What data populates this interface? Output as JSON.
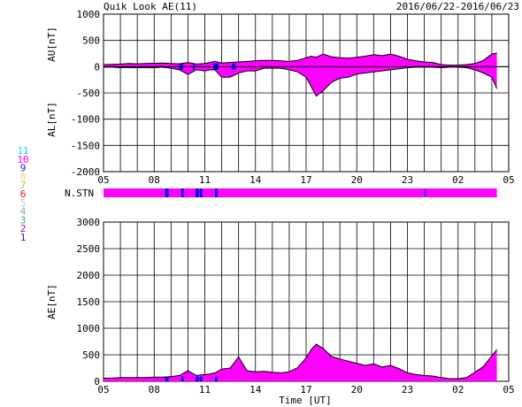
{
  "header": {
    "title": "Quik Look AE(11)",
    "date_range": "2016/06/22-2016/06/23"
  },
  "station_legend": {
    "items": [
      {
        "label": "11",
        "color": "#00e5e5"
      },
      {
        "label": "10",
        "color": "#ff00ff"
      },
      {
        "label": "9",
        "color": "#2020ff"
      },
      {
        "label": "8",
        "color": "#ffd060"
      },
      {
        "label": "7",
        "color": "#9ad84a"
      },
      {
        "label": "6",
        "color": "#e01010"
      },
      {
        "label": "5",
        "color": "#c8c8c8"
      },
      {
        "label": "4",
        "color": "#a0a0a0"
      },
      {
        "label": "3",
        "color": "#30b0b0"
      },
      {
        "label": "2",
        "color": "#a01090"
      },
      {
        "label": "1",
        "color": "#2020c0"
      }
    ]
  },
  "colors": {
    "fill": "#ff00ff",
    "line": "#000000",
    "gap": "#0000ff",
    "grid": "#000000"
  },
  "chart_data": [
    {
      "id": "au_al",
      "type": "area",
      "ylabel_top": "AU[nT]",
      "ylabel_bottom": "AL[nT]",
      "ylim": [
        -2000,
        1000
      ],
      "yticks": [
        -2000,
        -1500,
        -1000,
        -500,
        0,
        500,
        1000
      ],
      "xticks": [
        "05",
        "08",
        "11",
        "14",
        "17",
        "20",
        "23",
        "02",
        "05"
      ],
      "grid": true,
      "x_hours": [
        5,
        5.5,
        6,
        6.5,
        7,
        7.5,
        8,
        8.5,
        9,
        9.5,
        10,
        10.5,
        11,
        11.3,
        11.6,
        12,
        12.5,
        13,
        13.5,
        14,
        14.5,
        15,
        15.5,
        16,
        16.5,
        17,
        17.3,
        17.6,
        18,
        18.5,
        19,
        19.5,
        20,
        20.5,
        21,
        21.5,
        22,
        22.5,
        23,
        23.5,
        24,
        24.5,
        25,
        25.5,
        26,
        26.5,
        27,
        27.5,
        28,
        28.3
      ],
      "au": [
        40,
        45,
        50,
        60,
        55,
        60,
        65,
        70,
        60,
        55,
        80,
        50,
        60,
        80,
        100,
        70,
        80,
        90,
        100,
        110,
        120,
        120,
        110,
        100,
        120,
        170,
        200,
        180,
        240,
        190,
        170,
        160,
        180,
        200,
        230,
        210,
        240,
        200,
        140,
        110,
        90,
        80,
        40,
        30,
        30,
        40,
        60,
        120,
        240,
        260
      ],
      "al": [
        -10,
        -10,
        -20,
        -15,
        -20,
        -15,
        -20,
        -10,
        -30,
        -60,
        -150,
        -60,
        -80,
        -60,
        -60,
        -200,
        -200,
        -120,
        -80,
        -80,
        -30,
        -30,
        -30,
        -60,
        -100,
        -200,
        -380,
        -560,
        -460,
        -300,
        -220,
        -200,
        -140,
        -120,
        -100,
        -80,
        -60,
        -40,
        -20,
        -10,
        -10,
        -10,
        -20,
        -10,
        -10,
        -20,
        -60,
        -120,
        -200,
        -420
      ],
      "gaps": [
        [
          9.5,
          9.7
        ],
        [
          10.3,
          10.4
        ],
        [
          11.5,
          11.8
        ],
        [
          12.6,
          12.8
        ]
      ]
    },
    {
      "id": "nstn",
      "type": "bar",
      "label": "N.STN",
      "segments": [
        {
          "start": 5,
          "end": 28.3,
          "color": "#ff00ff"
        },
        {
          "start": 8.65,
          "end": 8.85,
          "color": "#0000ff"
        },
        {
          "start": 9.6,
          "end": 9.75,
          "color": "#0000ff"
        },
        {
          "start": 10.45,
          "end": 10.65,
          "color": "#0000ff"
        },
        {
          "start": 10.7,
          "end": 10.85,
          "color": "#0000ff"
        },
        {
          "start": 11.6,
          "end": 11.75,
          "color": "#0000ff"
        },
        {
          "start": 24.0,
          "end": 24.05,
          "color": "#4040c0"
        }
      ]
    },
    {
      "id": "ae",
      "type": "area",
      "ylabel": "AE[nT]",
      "xlabel": "Time [UT]",
      "ylim": [
        0,
        3000
      ],
      "yticks": [
        0,
        500,
        1000,
        1500,
        2000,
        2500,
        3000
      ],
      "xticks": [
        "05",
        "08",
        "11",
        "14",
        "17",
        "20",
        "23",
        "02",
        "05"
      ],
      "grid": true,
      "x_hours": [
        5,
        5.5,
        6,
        6.5,
        7,
        7.5,
        8,
        8.5,
        9,
        9.5,
        10,
        10.5,
        11,
        11.3,
        11.6,
        12,
        12.5,
        13,
        13.5,
        14,
        14.5,
        15,
        15.5,
        16,
        16.5,
        17,
        17.3,
        17.6,
        18,
        18.5,
        19,
        19.5,
        20,
        20.5,
        21,
        21.5,
        22,
        22.5,
        23,
        23.5,
        24,
        24.5,
        25,
        25.5,
        26,
        26.5,
        27,
        27.5,
        28,
        28.3
      ],
      "values": [
        60,
        60,
        70,
        70,
        70,
        70,
        80,
        80,
        90,
        110,
        200,
        110,
        130,
        140,
        160,
        230,
        250,
        460,
        200,
        180,
        190,
        170,
        160,
        180,
        260,
        440,
        600,
        700,
        620,
        470,
        420,
        380,
        340,
        300,
        330,
        270,
        300,
        240,
        160,
        130,
        110,
        100,
        70,
        50,
        50,
        70,
        170,
        280,
        480,
        600
      ],
      "gaps": [
        [
          8.65,
          8.85
        ],
        [
          9.6,
          9.75
        ],
        [
          10.45,
          10.65
        ],
        [
          10.7,
          10.85
        ],
        [
          11.6,
          11.75
        ]
      ]
    }
  ]
}
